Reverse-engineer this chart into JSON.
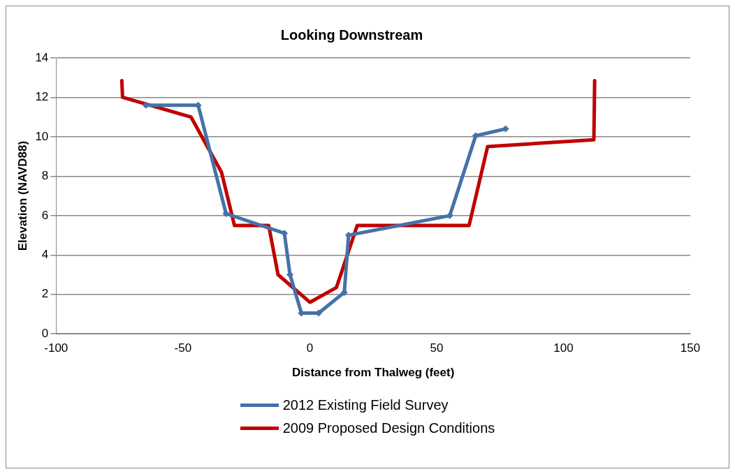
{
  "chart_data": {
    "type": "line",
    "title": "Looking Downstream",
    "xlabel": "Distance from Thalweg (feet)",
    "ylabel": "Elevation (NAVD88)",
    "xlim": [
      -100,
      150
    ],
    "xticks": [
      -100,
      -50,
      0,
      50,
      100,
      150
    ],
    "ylim": [
      0,
      14
    ],
    "yticks": [
      0,
      2,
      4,
      6,
      8,
      10,
      12,
      14
    ],
    "grid": "y",
    "legend": "bottom",
    "series": [
      {
        "name": "2012 Existing Field Survey",
        "color": "#4572a7",
        "marker": "diamond",
        "x": [
          -64.6,
          -44,
          -33,
          -10,
          -7.8,
          -3.3,
          3.5,
          13.6,
          15.3,
          55.2,
          65.4,
          77.2
        ],
        "values": [
          11.6,
          11.6,
          6.1,
          5.1,
          3.0,
          1.05,
          1.05,
          2.1,
          5.0,
          6.0,
          10.05,
          10.4
        ]
      },
      {
        "name": "2009 Proposed Design Conditions",
        "color": "#c00000",
        "marker": "none",
        "x": [
          -74.1,
          -73.8,
          -46.8,
          -34.8,
          -29.7,
          -16.2,
          -12.5,
          0.1,
          10.5,
          18.7,
          62.8,
          70.1,
          112,
          112.3
        ],
        "values": [
          12.85,
          12.0,
          11.0,
          8.2,
          5.5,
          5.5,
          3.0,
          1.6,
          2.35,
          5.5,
          5.5,
          9.5,
          9.85,
          12.85
        ]
      }
    ]
  }
}
